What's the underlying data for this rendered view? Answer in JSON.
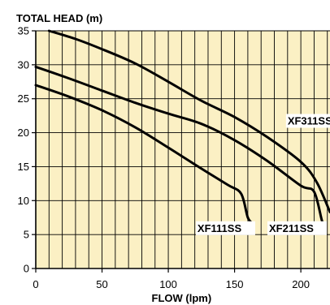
{
  "chart_data": {
    "type": "line",
    "title": "",
    "ylabel": "TOTAL HEAD (m)",
    "xlabel": "FLOW (lpm)",
    "xlim": [
      0,
      222
    ],
    "ylim": [
      0,
      35
    ],
    "x_ticks": [
      0,
      50,
      100,
      150,
      200
    ],
    "y_ticks": [
      0,
      5,
      10,
      15,
      20,
      25,
      30,
      35
    ],
    "x_minor_step": 10,
    "y_major_step": 5,
    "grid": true,
    "colors": {
      "plot_background": "#fbf0c4",
      "grid": "#000000",
      "line": "#000000"
    },
    "series": [
      {
        "name": "XF111SS",
        "points": [
          [
            0,
            27
          ],
          [
            25,
            25.3
          ],
          [
            50,
            23.3
          ],
          [
            75,
            20.8
          ],
          [
            100,
            17.8
          ],
          [
            125,
            14.7
          ],
          [
            145,
            12.3
          ],
          [
            155,
            11
          ],
          [
            160,
            7.5
          ],
          [
            164,
            6.6
          ]
        ]
      },
      {
        "name": "XF211SS",
        "points": [
          [
            0,
            29.7
          ],
          [
            25,
            28
          ],
          [
            50,
            26.2
          ],
          [
            75,
            24.4
          ],
          [
            100,
            22.8
          ],
          [
            125,
            21.3
          ],
          [
            150,
            18.9
          ],
          [
            175,
            15.8
          ],
          [
            200,
            12.2
          ],
          [
            210,
            11.3
          ],
          [
            216,
            7
          ],
          [
            218,
            6.6
          ]
        ]
      },
      {
        "name": "XF311SS",
        "points": [
          [
            10,
            35
          ],
          [
            30,
            33.8
          ],
          [
            50,
            32.3
          ],
          [
            75,
            30.2
          ],
          [
            100,
            27.5
          ],
          [
            125,
            24.7
          ],
          [
            150,
            22.3
          ],
          [
            175,
            19.3
          ],
          [
            200,
            15.7
          ],
          [
            212,
            12.7
          ],
          [
            222,
            8.3
          ]
        ]
      }
    ],
    "labels": [
      {
        "series": "XF311SS",
        "text": "XF311SS",
        "x": 190,
        "y": 21.2
      },
      {
        "series": "XF111SS",
        "text": "XF111SS",
        "x": 122,
        "y": 5.4
      },
      {
        "series": "XF211SS",
        "text": "XF211SS",
        "x": 176,
        "y": 5.4
      }
    ]
  }
}
